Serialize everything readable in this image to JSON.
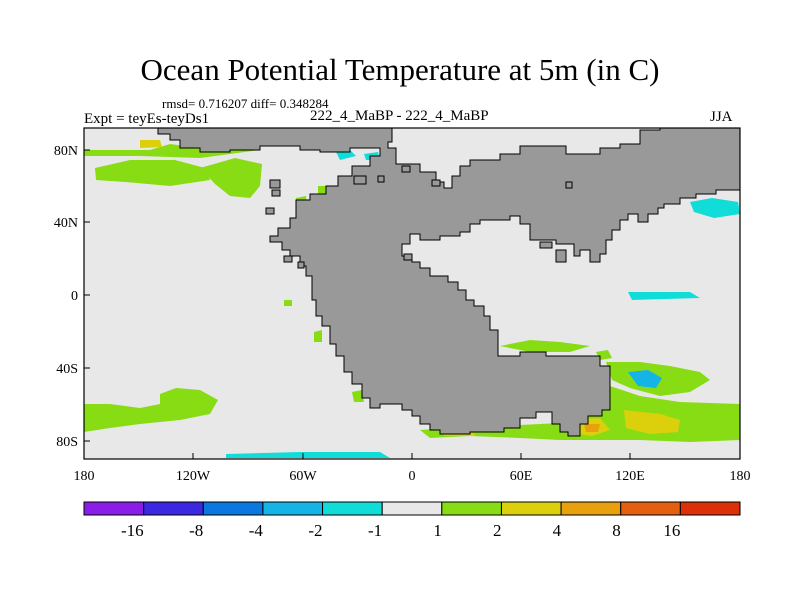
{
  "title": "Ocean Potential Temperature at 5m (in C)",
  "stats": "rmsd= 0.716207 diff= 0.348284",
  "expt": "Expt = teyEs-teyDs1",
  "comparison": "222_4_MaBP - 222_4_MaBP",
  "season": "JJA",
  "axes": {
    "x_ticks": [
      "180",
      "120W",
      "60W",
      "0",
      "60E",
      "120E",
      "180"
    ],
    "y_ticks": [
      "80N",
      "40N",
      "0",
      "40S",
      "80S"
    ]
  },
  "colorbar": {
    "labels": [
      "-16",
      "-8",
      "-4",
      "-2",
      "-1",
      "1",
      "2",
      "4",
      "8",
      "16"
    ],
    "colors": [
      "#8a1ee8",
      "#3b28e0",
      "#0a78e0",
      "#14b4e6",
      "#10dcd8",
      "#e8e8e8",
      "#88dc14",
      "#dcd00c",
      "#e8a00c",
      "#e46010",
      "#dc3008"
    ]
  },
  "colors": {
    "background": "#e8e8e8",
    "land": "#999999",
    "green": "#88dc14",
    "cyan": "#10d0dc",
    "yellow": "#d8c80c",
    "orange": "#e8a00c"
  }
}
